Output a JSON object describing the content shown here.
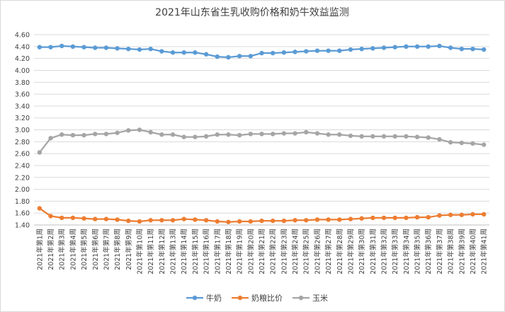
{
  "chart_data": {
    "type": "line",
    "title": "2021年山东省生乳收购价格和奶牛效益监测",
    "categories": [
      "2021年第1周",
      "2021年第2周",
      "2021年第3周",
      "2021年第4周",
      "2021年第5周",
      "2021年第6周",
      "2021年第7周",
      "2021年第8周",
      "2021年第9周",
      "2021年第10周",
      "2021年第11周",
      "2021年第12周",
      "2021年第13周",
      "2021年第14周",
      "2021年第15周",
      "2021年第16周",
      "2021年第17周",
      "2021年第18周",
      "2021年第19周",
      "2021年第20周",
      "2021年第21周",
      "2021年第22周",
      "2021年第23周",
      "2021年第24周",
      "2021年第25周",
      "2021年第26周",
      "2021年第27周",
      "2021年第28周",
      "2021年第29周",
      "2021年第30周",
      "2021年第31周",
      "2021年第32周",
      "2021年第33周",
      "2021年第34周",
      "2021年第35周",
      "2021年第36周",
      "2021年第37周",
      "2021年第38周",
      "2021年第39周",
      "2021年第40周",
      "2021年第41周"
    ],
    "series": [
      {
        "name": "牛奶",
        "color": "#5b9bd5",
        "values": [
          4.39,
          4.39,
          4.41,
          4.4,
          4.39,
          4.38,
          4.38,
          4.37,
          4.36,
          4.35,
          4.36,
          4.32,
          4.3,
          4.3,
          4.3,
          4.27,
          4.23,
          4.22,
          4.24,
          4.24,
          4.29,
          4.29,
          4.3,
          4.31,
          4.32,
          4.33,
          4.33,
          4.33,
          4.35,
          4.36,
          4.37,
          4.38,
          4.39,
          4.4,
          4.4,
          4.4,
          4.41,
          4.38,
          4.36,
          4.36,
          4.35
        ]
      },
      {
        "name": "奶粮比价",
        "color": "#ed7d31",
        "values": [
          1.68,
          1.55,
          1.52,
          1.52,
          1.51,
          1.5,
          1.5,
          1.49,
          1.47,
          1.46,
          1.48,
          1.48,
          1.48,
          1.5,
          1.49,
          1.48,
          1.46,
          1.45,
          1.46,
          1.46,
          1.47,
          1.47,
          1.47,
          1.48,
          1.48,
          1.49,
          1.49,
          1.49,
          1.5,
          1.51,
          1.52,
          1.52,
          1.52,
          1.52,
          1.53,
          1.53,
          1.56,
          1.57,
          1.57,
          1.58,
          1.58
        ]
      },
      {
        "name": "玉米",
        "color": "#a5a5a5",
        "values": [
          2.62,
          2.86,
          2.92,
          2.91,
          2.91,
          2.93,
          2.93,
          2.95,
          2.99,
          3.0,
          2.96,
          2.92,
          2.92,
          2.88,
          2.88,
          2.89,
          2.92,
          2.92,
          2.91,
          2.93,
          2.93,
          2.93,
          2.94,
          2.94,
          2.96,
          2.94,
          2.92,
          2.92,
          2.9,
          2.89,
          2.89,
          2.89,
          2.89,
          2.89,
          2.88,
          2.87,
          2.84,
          2.79,
          2.78,
          2.77,
          2.75
        ]
      }
    ],
    "ylim": [
      1.4,
      4.6
    ],
    "yticks": [
      "1.40",
      "1.60",
      "1.80",
      "2.00",
      "2.20",
      "2.40",
      "2.60",
      "2.80",
      "3.00",
      "3.20",
      "3.40",
      "3.60",
      "3.80",
      "4.00",
      "4.20",
      "4.40",
      "4.60"
    ],
    "grid": true,
    "legend_position": "bottom"
  }
}
